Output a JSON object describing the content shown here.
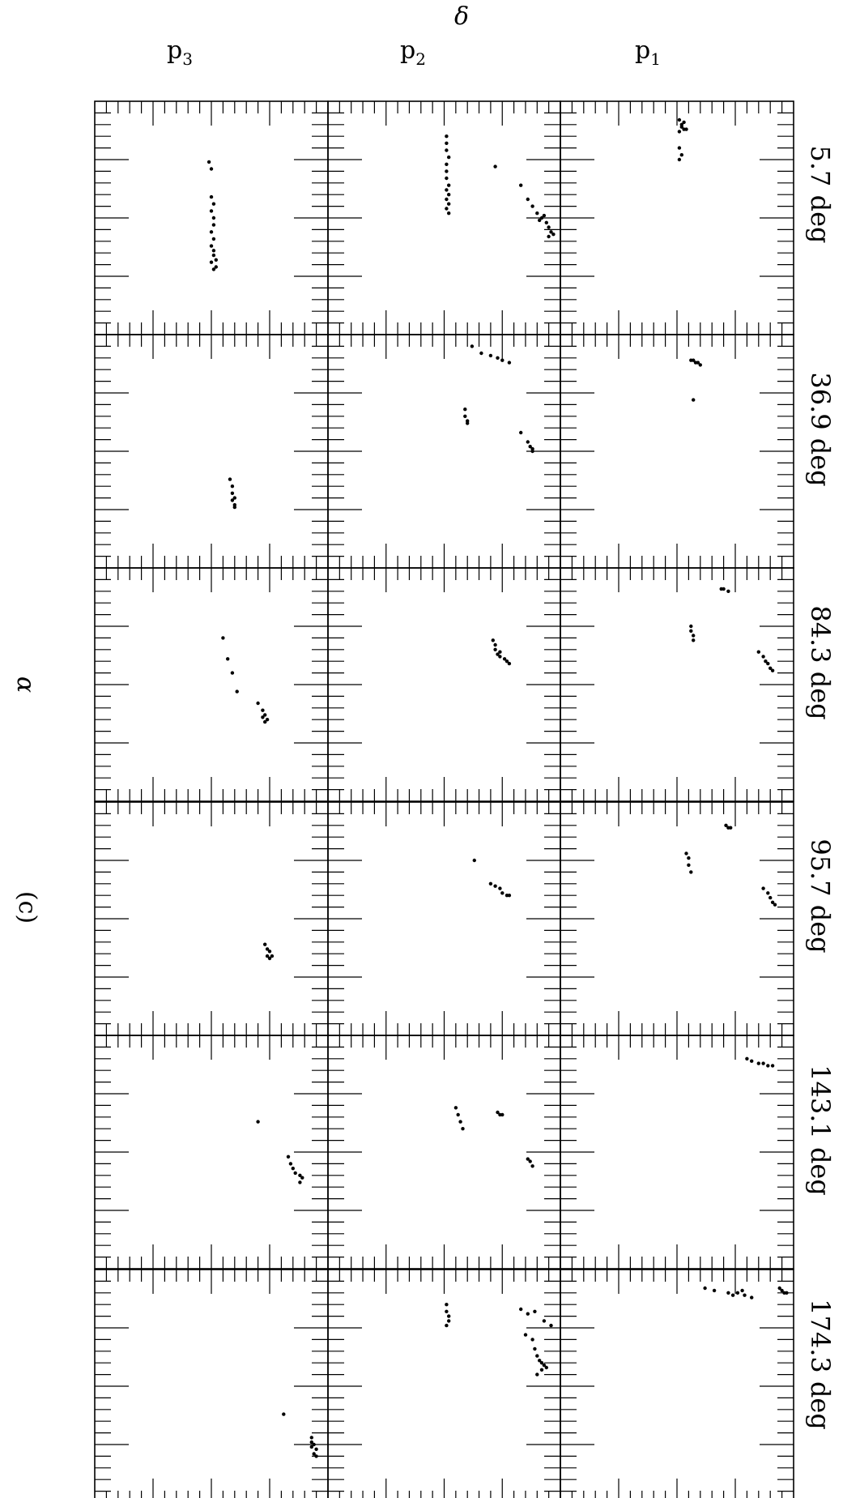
{
  "figure": {
    "panel_label": "(c)",
    "x_axis_symbol": "α",
    "y_axis_symbol": "δ"
  },
  "chart_data": {
    "type": "scatter",
    "grid": false,
    "legend": "none",
    "columns": [
      {
        "label": "p",
        "subscript": "3"
      },
      {
        "label": "p",
        "subscript": "2"
      },
      {
        "label": "p",
        "subscript": "1"
      }
    ],
    "rows": [
      {
        "label": "5.7 deg"
      },
      {
        "label": "36.9 deg"
      },
      {
        "label": "84.3 deg"
      },
      {
        "label": "95.7 deg"
      },
      {
        "label": "143.1 deg"
      },
      {
        "label": "174.3 deg"
      }
    ],
    "axis_range": {
      "across": [
        0,
        1
      ],
      "down": [
        0,
        1
      ]
    },
    "panels": [
      {
        "row": 0,
        "col": 0,
        "points": [
          [
            0.49,
            0.26
          ],
          [
            0.5,
            0.29
          ],
          [
            0.5,
            0.41
          ],
          [
            0.51,
            0.44
          ],
          [
            0.5,
            0.47
          ],
          [
            0.51,
            0.5
          ],
          [
            0.51,
            0.53
          ],
          [
            0.5,
            0.56
          ],
          [
            0.51,
            0.59
          ],
          [
            0.5,
            0.62
          ],
          [
            0.51,
            0.64
          ],
          [
            0.51,
            0.66
          ],
          [
            0.52,
            0.68
          ],
          [
            0.5,
            0.69
          ],
          [
            0.52,
            0.71
          ],
          [
            0.51,
            0.72
          ]
        ]
      },
      {
        "row": 0,
        "col": 1,
        "points": [
          [
            0.51,
            0.15
          ],
          [
            0.51,
            0.18
          ],
          [
            0.51,
            0.21
          ],
          [
            0.52,
            0.24
          ],
          [
            0.51,
            0.27
          ],
          [
            0.51,
            0.3
          ],
          [
            0.51,
            0.33
          ],
          [
            0.52,
            0.36
          ],
          [
            0.51,
            0.38
          ],
          [
            0.52,
            0.4
          ],
          [
            0.51,
            0.42
          ],
          [
            0.52,
            0.44
          ],
          [
            0.51,
            0.46
          ],
          [
            0.52,
            0.48
          ],
          [
            0.72,
            0.28
          ],
          [
            0.83,
            0.36
          ],
          [
            0.86,
            0.42
          ],
          [
            0.88,
            0.45
          ],
          [
            0.9,
            0.48
          ],
          [
            0.92,
            0.5
          ],
          [
            0.94,
            0.52
          ],
          [
            0.95,
            0.54
          ],
          [
            0.96,
            0.56
          ],
          [
            0.97,
            0.57
          ],
          [
            0.93,
            0.49
          ],
          [
            0.91,
            0.51
          ],
          [
            0.95,
            0.58
          ]
        ]
      },
      {
        "row": 0,
        "col": 2,
        "points": [
          [
            0.51,
            0.08
          ],
          [
            0.52,
            0.1
          ],
          [
            0.53,
            0.12
          ],
          [
            0.52,
            0.11
          ],
          [
            0.51,
            0.13
          ],
          [
            0.53,
            0.09
          ],
          [
            0.54,
            0.12
          ],
          [
            0.51,
            0.2
          ],
          [
            0.52,
            0.23
          ],
          [
            0.51,
            0.25
          ]
        ]
      },
      {
        "row": 1,
        "col": 0,
        "points": [
          [
            0.58,
            0.62
          ],
          [
            0.59,
            0.65
          ],
          [
            0.59,
            0.68
          ],
          [
            0.6,
            0.7
          ],
          [
            0.59,
            0.71
          ],
          [
            0.6,
            0.73
          ],
          [
            0.6,
            0.74
          ]
        ]
      },
      {
        "row": 1,
        "col": 1,
        "points": [
          [
            0.62,
            0.05
          ],
          [
            0.66,
            0.08
          ],
          [
            0.7,
            0.09
          ],
          [
            0.73,
            0.1
          ],
          [
            0.75,
            0.11
          ],
          [
            0.78,
            0.12
          ],
          [
            0.59,
            0.32
          ],
          [
            0.59,
            0.35
          ],
          [
            0.6,
            0.37
          ],
          [
            0.6,
            0.38
          ],
          [
            0.83,
            0.42
          ],
          [
            0.86,
            0.46
          ],
          [
            0.87,
            0.48
          ],
          [
            0.88,
            0.49
          ],
          [
            0.88,
            0.5
          ]
        ]
      },
      {
        "row": 1,
        "col": 2,
        "points": [
          [
            0.56,
            0.11
          ],
          [
            0.57,
            0.11
          ],
          [
            0.58,
            0.12
          ],
          [
            0.59,
            0.12
          ],
          [
            0.6,
            0.13
          ],
          [
            0.57,
            0.28
          ]
        ]
      },
      {
        "row": 2,
        "col": 0,
        "points": [
          [
            0.55,
            0.3
          ],
          [
            0.57,
            0.39
          ],
          [
            0.59,
            0.45
          ],
          [
            0.61,
            0.53
          ],
          [
            0.7,
            0.58
          ],
          [
            0.72,
            0.61
          ],
          [
            0.73,
            0.63
          ],
          [
            0.72,
            0.64
          ],
          [
            0.74,
            0.65
          ],
          [
            0.73,
            0.66
          ]
        ]
      },
      {
        "row": 2,
        "col": 1,
        "points": [
          [
            0.71,
            0.31
          ],
          [
            0.72,
            0.33
          ],
          [
            0.73,
            0.37
          ],
          [
            0.74,
            0.38
          ],
          [
            0.76,
            0.39
          ],
          [
            0.77,
            0.4
          ],
          [
            0.78,
            0.41
          ],
          [
            0.72,
            0.35
          ],
          [
            0.74,
            0.36
          ]
        ]
      },
      {
        "row": 2,
        "col": 2,
        "points": [
          [
            0.69,
            0.09
          ],
          [
            0.7,
            0.09
          ],
          [
            0.72,
            0.1
          ],
          [
            0.56,
            0.25
          ],
          [
            0.56,
            0.27
          ],
          [
            0.57,
            0.29
          ],
          [
            0.57,
            0.31
          ],
          [
            0.85,
            0.36
          ],
          [
            0.87,
            0.38
          ],
          [
            0.88,
            0.4
          ],
          [
            0.89,
            0.41
          ],
          [
            0.9,
            0.43
          ],
          [
            0.91,
            0.44
          ]
        ]
      },
      {
        "row": 3,
        "col": 0,
        "points": [
          [
            0.73,
            0.61
          ],
          [
            0.74,
            0.63
          ],
          [
            0.75,
            0.64
          ],
          [
            0.74,
            0.66
          ],
          [
            0.75,
            0.67
          ],
          [
            0.76,
            0.66
          ]
        ]
      },
      {
        "row": 3,
        "col": 1,
        "points": [
          [
            0.63,
            0.25
          ],
          [
            0.7,
            0.35
          ],
          [
            0.72,
            0.36
          ],
          [
            0.74,
            0.37
          ],
          [
            0.75,
            0.39
          ],
          [
            0.77,
            0.4
          ],
          [
            0.78,
            0.4
          ]
        ]
      },
      {
        "row": 3,
        "col": 2,
        "points": [
          [
            0.71,
            0.1
          ],
          [
            0.72,
            0.11
          ],
          [
            0.73,
            0.11
          ],
          [
            0.54,
            0.22
          ],
          [
            0.55,
            0.24
          ],
          [
            0.55,
            0.27
          ],
          [
            0.56,
            0.3
          ],
          [
            0.87,
            0.37
          ],
          [
            0.89,
            0.39
          ],
          [
            0.9,
            0.41
          ],
          [
            0.91,
            0.43
          ],
          [
            0.92,
            0.44
          ]
        ]
      },
      {
        "row": 4,
        "col": 0,
        "points": [
          [
            0.7,
            0.37
          ],
          [
            0.83,
            0.52
          ],
          [
            0.84,
            0.55
          ],
          [
            0.85,
            0.57
          ],
          [
            0.86,
            0.59
          ],
          [
            0.88,
            0.6
          ],
          [
            0.89,
            0.61
          ],
          [
            0.88,
            0.63
          ]
        ]
      },
      {
        "row": 4,
        "col": 1,
        "points": [
          [
            0.55,
            0.31
          ],
          [
            0.56,
            0.34
          ],
          [
            0.57,
            0.37
          ],
          [
            0.58,
            0.4
          ],
          [
            0.73,
            0.33
          ],
          [
            0.74,
            0.34
          ],
          [
            0.75,
            0.34
          ],
          [
            0.86,
            0.53
          ],
          [
            0.87,
            0.54
          ],
          [
            0.88,
            0.56
          ]
        ]
      },
      {
        "row": 4,
        "col": 2,
        "points": [
          [
            0.8,
            0.1
          ],
          [
            0.82,
            0.11
          ],
          [
            0.85,
            0.12
          ],
          [
            0.87,
            0.12
          ],
          [
            0.89,
            0.13
          ],
          [
            0.91,
            0.13
          ]
        ]
      },
      {
        "row": 5,
        "col": 0,
        "points": [
          [
            0.81,
            0.62
          ],
          [
            0.93,
            0.72
          ],
          [
            0.93,
            0.74
          ],
          [
            0.94,
            0.75
          ],
          [
            0.93,
            0.76
          ],
          [
            0.95,
            0.77
          ],
          [
            0.94,
            0.79
          ],
          [
            0.95,
            0.8
          ]
        ]
      },
      {
        "row": 5,
        "col": 1,
        "points": [
          [
            0.51,
            0.15
          ],
          [
            0.51,
            0.18
          ],
          [
            0.52,
            0.2
          ],
          [
            0.52,
            0.22
          ],
          [
            0.51,
            0.24
          ],
          [
            0.83,
            0.17
          ],
          [
            0.86,
            0.19
          ],
          [
            0.89,
            0.18
          ],
          [
            0.93,
            0.22
          ],
          [
            0.96,
            0.24
          ],
          [
            0.85,
            0.28
          ],
          [
            0.88,
            0.3
          ],
          [
            0.89,
            0.34
          ],
          [
            0.9,
            0.37
          ],
          [
            0.91,
            0.39
          ],
          [
            0.92,
            0.4
          ],
          [
            0.93,
            0.41
          ],
          [
            0.92,
            0.43
          ],
          [
            0.94,
            0.42
          ],
          [
            0.9,
            0.45
          ]
        ]
      },
      {
        "row": 5,
        "col": 2,
        "points": [
          [
            0.62,
            0.08
          ],
          [
            0.66,
            0.09
          ],
          [
            0.72,
            0.1
          ],
          [
            0.74,
            0.11
          ],
          [
            0.76,
            0.1
          ],
          [
            0.78,
            0.09
          ],
          [
            0.79,
            0.11
          ],
          [
            0.82,
            0.12
          ],
          [
            0.94,
            0.08
          ],
          [
            0.95,
            0.09
          ],
          [
            0.96,
            0.1
          ],
          [
            0.97,
            0.1
          ]
        ]
      }
    ]
  }
}
